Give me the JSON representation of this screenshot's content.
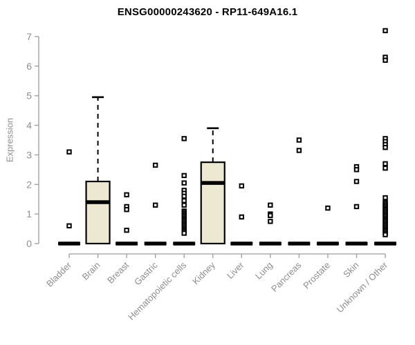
{
  "chart_data": {
    "type": "boxplot",
    "title": "ENSG00000243620 - RP11-649A16.1",
    "ylabel": "Expression",
    "xlabel": "",
    "ylim": [
      0,
      7
    ],
    "yticks": [
      0,
      1,
      2,
      3,
      4,
      5,
      6,
      7
    ],
    "grid": false,
    "legend": false,
    "categories": [
      "Bladder",
      "Brain",
      "Breast",
      "Gastric",
      "Hematopoietic cells",
      "Kidney",
      "Liver",
      "Lung",
      "Pancreas",
      "Prostate",
      "Skin",
      "Unknown / Other"
    ],
    "series": [
      {
        "name": "Bladder",
        "q1": 0,
        "median": 0,
        "q3": 0,
        "whisker_low": 0,
        "whisker_high": 0,
        "outliers": [
          3.1,
          0.6
        ]
      },
      {
        "name": "Brain",
        "q1": 0,
        "median": 1.4,
        "q3": 2.1,
        "whisker_low": 0,
        "whisker_high": 4.95,
        "outliers": []
      },
      {
        "name": "Breast",
        "q1": 0,
        "median": 0,
        "q3": 0,
        "whisker_low": 0,
        "whisker_high": 0,
        "outliers": [
          1.65,
          1.25,
          1.15,
          0.45
        ]
      },
      {
        "name": "Gastric",
        "q1": 0,
        "median": 0,
        "q3": 0,
        "whisker_low": 0,
        "whisker_high": 0,
        "outliers": [
          2.65,
          1.3
        ]
      },
      {
        "name": "Hematopoietic cells",
        "q1": 0,
        "median": 0,
        "q3": 0,
        "whisker_low": 0,
        "whisker_high": 0,
        "outliers": [
          3.55,
          2.3,
          2.05,
          1.8,
          1.7,
          1.6,
          1.45,
          1.3,
          1.1,
          1.05,
          1.0,
          0.95,
          0.9,
          0.85,
          0.8,
          0.75,
          0.7,
          0.65,
          0.6,
          0.55,
          0.5,
          0.45,
          0.4,
          0.35
        ]
      },
      {
        "name": "Kidney",
        "q1": 0,
        "median": 2.05,
        "q3": 2.75,
        "whisker_low": 0,
        "whisker_high": 3.9,
        "outliers": []
      },
      {
        "name": "Liver",
        "q1": 0,
        "median": 0,
        "q3": 0,
        "whisker_low": 0,
        "whisker_high": 0,
        "outliers": [
          1.95,
          0.9
        ]
      },
      {
        "name": "Lung",
        "q1": 0,
        "median": 0,
        "q3": 0,
        "whisker_low": 0,
        "whisker_high": 0,
        "outliers": [
          1.3,
          1.0,
          0.95,
          0.75
        ]
      },
      {
        "name": "Pancreas",
        "q1": 0,
        "median": 0,
        "q3": 0,
        "whisker_low": 0,
        "whisker_high": 0,
        "outliers": [
          3.5,
          3.15
        ]
      },
      {
        "name": "Prostate",
        "q1": 0,
        "median": 0,
        "q3": 0,
        "whisker_low": 0,
        "whisker_high": 0,
        "outliers": [
          1.2
        ]
      },
      {
        "name": "Skin",
        "q1": 0,
        "median": 0,
        "q3": 0,
        "whisker_low": 0,
        "whisker_high": 0,
        "outliers": [
          2.6,
          2.5,
          2.1,
          1.25
        ]
      },
      {
        "name": "Unknown / Other",
        "q1": 0,
        "median": 0,
        "q3": 0,
        "whisker_low": 0,
        "whisker_high": 0,
        "outliers": [
          7.2,
          6.3,
          6.2,
          3.55,
          3.45,
          3.35,
          3.25,
          2.7,
          2.55,
          1.55,
          1.4,
          1.35,
          1.3,
          1.25,
          1.2,
          1.15,
          1.1,
          1.05,
          1.0,
          0.95,
          0.9,
          0.85,
          0.8,
          0.75,
          0.7,
          0.65,
          0.6,
          0.55,
          0.5,
          0.45,
          0.4,
          0.35,
          0.3
        ]
      }
    ],
    "colors": {
      "box_fill": "#EDE8D1",
      "box_stroke": "#000000",
      "median": "#000000",
      "whisker": "#000000",
      "outlier_stroke": "#000000",
      "outlier_fill": "#ffffff",
      "axis": "#9b9b9b",
      "tick_label": "#8d8d8d",
      "title": "#000000",
      "background": "#ffffff"
    }
  }
}
